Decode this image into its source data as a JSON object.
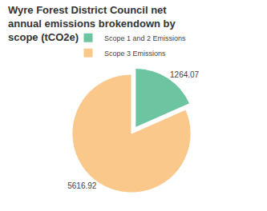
{
  "chart_data": {
    "type": "pie",
    "title": "Wyre Forest District Council net annual emissions brokendown by scope (tCO2e)",
    "categories": [
      "Scope 1 and 2 Emissions",
      "Scope 3 Emissions"
    ],
    "values": [
      1264.07,
      5616.92
    ],
    "colors": [
      "#6cc4a0",
      "#f9c88a"
    ],
    "data_labels": true,
    "legend": "top"
  }
}
